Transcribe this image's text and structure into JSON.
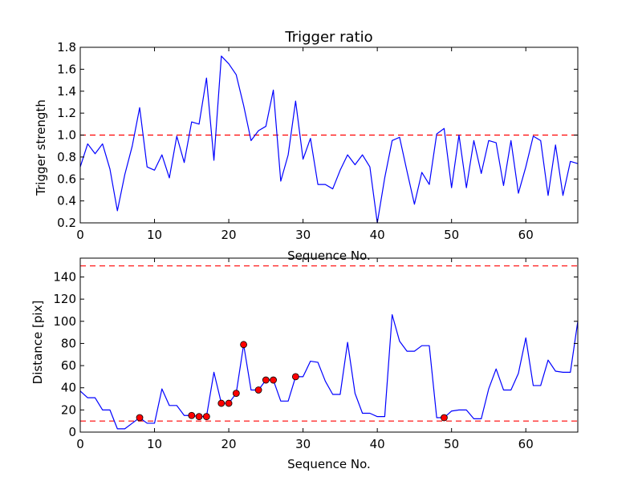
{
  "colors": {
    "line": "#0000ff",
    "threshold": "#ff0000",
    "marker": "#ff0000",
    "axes": "#000000",
    "background": "#ffffff"
  },
  "chart_data": [
    {
      "type": "line",
      "title": "Trigger ratio",
      "xlabel": "Sequence No.",
      "ylabel": "Trigger strength",
      "xlim": [
        0,
        67
      ],
      "ylim": [
        0.2,
        1.8
      ],
      "xticks": [
        0,
        10,
        20,
        30,
        40,
        50,
        60
      ],
      "xtick_labels": [
        "0",
        "10",
        "20",
        "30",
        "40",
        "50",
        "60"
      ],
      "yticks": [
        0.2,
        0.4,
        0.6,
        0.8,
        1.0,
        1.2,
        1.4,
        1.6,
        1.8
      ],
      "ytick_labels": [
        "0.2",
        "0.4",
        "0.6",
        "0.8",
        "1.0",
        "1.2",
        "1.4",
        "1.6",
        "1.8"
      ],
      "grid": false,
      "thresholds": [
        1.0
      ],
      "series": [
        {
          "name": "Trigger strength",
          "x": [
            0,
            1,
            2,
            3,
            4,
            5,
            6,
            7,
            8,
            9,
            10,
            11,
            12,
            13,
            14,
            15,
            16,
            17,
            18,
            19,
            20,
            21,
            22,
            23,
            24,
            25,
            26,
            27,
            28,
            29,
            30,
            31,
            32,
            33,
            34,
            35,
            36,
            37,
            38,
            39,
            40,
            41,
            42,
            43,
            44,
            45,
            46,
            47,
            48,
            49,
            50,
            51,
            52,
            53,
            54,
            55,
            56,
            57,
            58,
            59,
            60,
            61,
            62,
            63,
            64,
            65,
            66,
            67
          ],
          "values": [
            0.71,
            0.92,
            0.83,
            0.92,
            0.69,
            0.31,
            0.64,
            0.9,
            1.25,
            0.71,
            0.68,
            0.82,
            0.61,
            0.99,
            0.75,
            1.12,
            1.1,
            1.52,
            0.77,
            1.72,
            1.65,
            1.55,
            1.27,
            0.95,
            1.04,
            1.08,
            1.41,
            0.58,
            0.82,
            1.31,
            0.78,
            0.97,
            0.55,
            0.55,
            0.51,
            0.68,
            0.82,
            0.73,
            0.82,
            0.71,
            0.2,
            0.61,
            0.95,
            0.98,
            0.67,
            0.37,
            0.66,
            0.55,
            1.01,
            1.06,
            0.52,
            1.0,
            0.52,
            0.95,
            0.65,
            0.95,
            0.93,
            0.54,
            0.95,
            0.47,
            0.71,
            0.99,
            0.95,
            0.45,
            0.91,
            0.45,
            0.76,
            0.74
          ]
        }
      ]
    },
    {
      "type": "line",
      "title": "",
      "xlabel": "Sequence No.",
      "ylabel": "Distance [pix]",
      "xlim": [
        0,
        67
      ],
      "ylim": [
        0,
        157
      ],
      "xticks": [
        0,
        10,
        20,
        30,
        40,
        50,
        60
      ],
      "xtick_labels": [
        "0",
        "10",
        "20",
        "30",
        "40",
        "50",
        "60"
      ],
      "yticks": [
        0,
        20,
        40,
        60,
        80,
        100,
        120,
        140
      ],
      "ytick_labels": [
        "0",
        "20",
        "40",
        "60",
        "80",
        "100",
        "120",
        "140"
      ],
      "grid": false,
      "thresholds": [
        10,
        150
      ],
      "series": [
        {
          "name": "Distance",
          "x": [
            0,
            1,
            2,
            3,
            4,
            5,
            6,
            7,
            8,
            9,
            10,
            11,
            12,
            13,
            14,
            15,
            16,
            17,
            18,
            19,
            20,
            21,
            22,
            23,
            24,
            25,
            26,
            27,
            28,
            29,
            30,
            31,
            32,
            33,
            34,
            35,
            36,
            37,
            38,
            39,
            40,
            41,
            42,
            43,
            44,
            45,
            46,
            47,
            48,
            49,
            50,
            51,
            52,
            53,
            54,
            55,
            56,
            57,
            58,
            59,
            60,
            61,
            62,
            63,
            64,
            65,
            66,
            67
          ],
          "values": [
            37,
            31,
            31,
            20,
            20,
            3,
            3,
            8,
            13,
            8,
            8,
            39,
            24,
            24,
            15,
            15,
            14,
            14,
            54,
            26,
            26,
            35,
            79,
            38,
            38,
            47,
            47,
            28,
            28,
            50,
            50,
            64,
            63,
            46,
            34,
            34,
            81,
            35,
            17,
            17,
            14,
            14,
            106,
            82,
            73,
            73,
            78,
            78,
            13,
            13,
            19,
            20,
            20,
            12,
            12,
            39,
            57,
            38,
            38,
            53,
            85,
            42,
            42,
            65,
            55,
            54,
            54,
            100
          ]
        }
      ],
      "markers": {
        "x": [
          8,
          15,
          16,
          17,
          19,
          20,
          21,
          22,
          24,
          25,
          26,
          29,
          49
        ],
        "values": [
          13,
          15,
          14,
          14,
          26,
          26,
          35,
          79,
          38,
          47,
          47,
          50,
          13
        ]
      }
    }
  ]
}
